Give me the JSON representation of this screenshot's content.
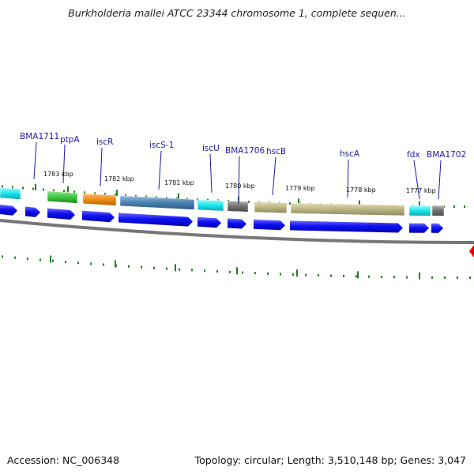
{
  "title": "Burkholderia mallei ATCC 23344 chromosome 1, complete sequen...",
  "footer": {
    "accession": "Accession: NC_006348",
    "summary": "Topology: circular; Length: 3,510,148 bp; Genes: 3,047"
  },
  "kbp_labels": [
    "1783 kbp",
    "1782 kbp",
    "1781 kbp",
    "1780 kbp",
    "1779 kbp",
    "1778 kbp",
    "1777 kbp"
  ],
  "gene_labels": [
    "BMA1711",
    "ptpA",
    "iscR",
    "iscS-1",
    "iscU",
    "BMA1706",
    "hscB",
    "hscA",
    "fdx",
    "BMA1702"
  ],
  "colors": {
    "gene_label": "#1a1aaa",
    "arrow_blue": "#0a0af0",
    "tick_green": "#1f7f1f",
    "backbone": "#777777",
    "marker_red": "#e00000",
    "cyan": "#19e6ee",
    "green": "#3cc43c",
    "orange": "#f08a10",
    "steelblue": "#4a7fb0",
    "gray": "#707070",
    "khaki": "#bab481"
  }
}
